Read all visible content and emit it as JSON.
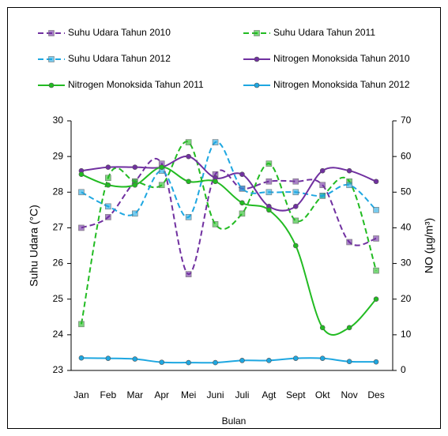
{
  "chart_data": {
    "type": "line",
    "categories": [
      "Jan",
      "Feb",
      "Mar",
      "Apr",
      "Mei",
      "Juni",
      "Juli",
      "Agt",
      "Sept",
      "Okt",
      "Nov",
      "Des"
    ],
    "x_label": "Bulan",
    "y_label": "Suhu Udara (°C)",
    "y2_label": "NO (µg/m³)",
    "ylim": [
      23,
      30
    ],
    "yticks": [
      23,
      24,
      25,
      26,
      27,
      28,
      29,
      30
    ],
    "y2lim": [
      0,
      70
    ],
    "y2ticks": [
      0,
      10,
      20,
      30,
      40,
      50,
      60,
      70
    ],
    "series": [
      {
        "name": "Suhu Udara Tahun 2010",
        "color": "#7030a0",
        "style": "dashed",
        "marker": "square",
        "values": [
          27.0,
          27.3,
          28.3,
          28.8,
          25.7,
          28.5,
          28.1,
          28.3,
          28.3,
          28.2,
          26.6,
          26.7
        ]
      },
      {
        "name": "Suhu Udara Tahun 2011",
        "color": "#22bb22",
        "style": "dashed",
        "marker": "square",
        "values": [
          24.3,
          28.4,
          28.3,
          28.2,
          29.4,
          27.1,
          27.4,
          28.8,
          27.2,
          27.9,
          28.3,
          25.8
        ]
      },
      {
        "name": "Suhu Udara Tahun 2012",
        "color": "#1ea7e1",
        "style": "dashed",
        "marker": "square",
        "values": [
          28.0,
          27.6,
          27.4,
          28.6,
          27.3,
          29.4,
          28.1,
          28.0,
          28.0,
          27.9,
          28.2,
          27.5
        ]
      },
      {
        "name": "Nitrogen Monoksida Tahun 2010",
        "color": "#7030a0",
        "style": "solid",
        "marker": "circle",
        "axis": "y2",
        "values": [
          56,
          57,
          57,
          57,
          60,
          54,
          55,
          46,
          46,
          56,
          56,
          53
        ]
      },
      {
        "name": "Nitrogen Monoksida Tahun 2011",
        "color": "#22bb22",
        "style": "solid",
        "marker": "circle",
        "axis": "y2",
        "values": [
          55,
          52,
          52,
          57,
          53,
          53,
          47,
          45,
          35,
          12,
          12,
          20
        ]
      },
      {
        "name": "Nitrogen Monoksida Tahun 2012",
        "color": "#1ea7e1",
        "style": "solid",
        "marker": "circle",
        "axis": "y2",
        "values": [
          3.5,
          3.4,
          3.2,
          2.3,
          2.2,
          2.2,
          2.8,
          2.8,
          3.4,
          3.4,
          2.5,
          2.4
        ]
      }
    ]
  }
}
